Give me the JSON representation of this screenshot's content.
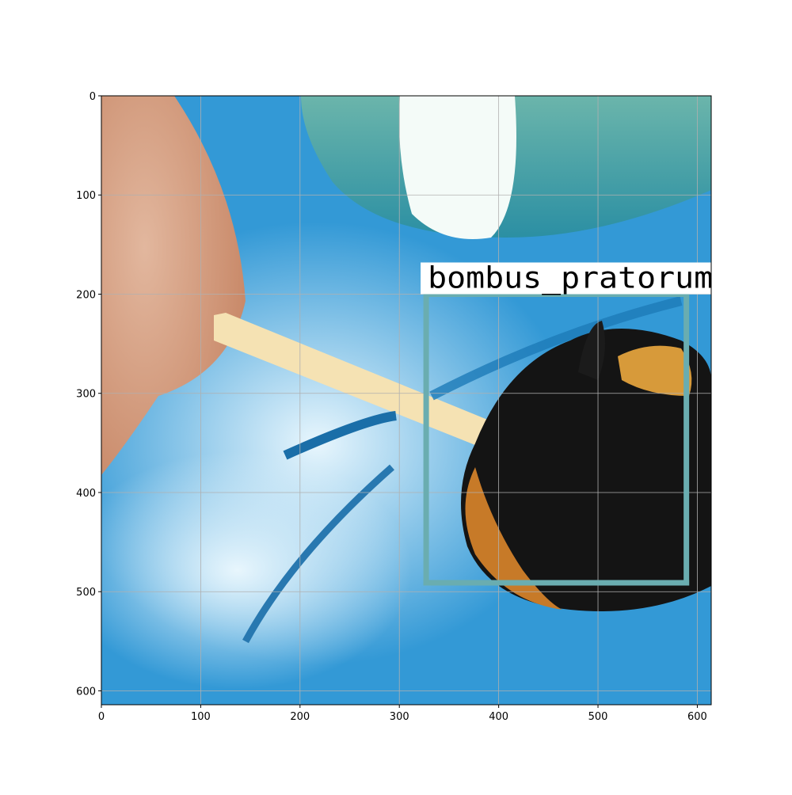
{
  "chart_data": {
    "type": "image",
    "xlim": [
      0,
      614
    ],
    "ylim": [
      614,
      0
    ],
    "xticks": [
      0,
      100,
      200,
      300,
      400,
      500,
      600
    ],
    "yticks": [
      0,
      100,
      200,
      300,
      400,
      500,
      600
    ],
    "grid": true,
    "box": {
      "label": "bombus_pratorum",
      "x": [
        327,
        589
      ],
      "y": [
        200,
        491
      ],
      "color": "#6aadb0"
    }
  }
}
